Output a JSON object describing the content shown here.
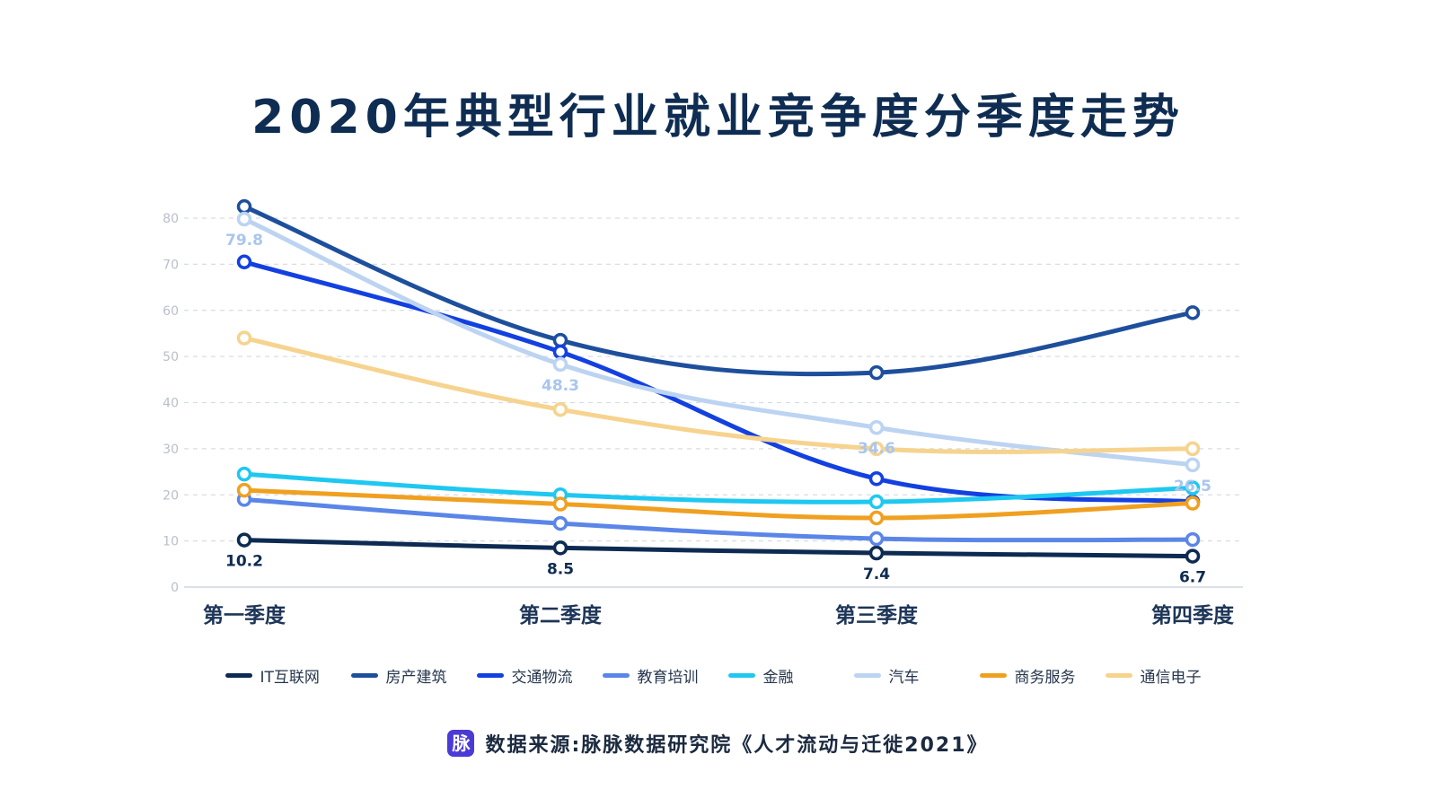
{
  "title": "2020年典型行业就业竞争度分季度走势",
  "source": {
    "logo_text": "脉",
    "text": "数据来源:脉脉数据研究院《人才流动与迁徙2021》"
  },
  "chart_data": {
    "type": "line",
    "title": "2020年典型行业就业竞争度分季度走势",
    "categories": [
      "第一季度",
      "第二季度",
      "第三季度",
      "第四季度"
    ],
    "ylim": [
      0,
      80
    ],
    "yticks": [
      0,
      10,
      20,
      30,
      40,
      50,
      60,
      70,
      80
    ],
    "grid": true,
    "legend_position": "bottom",
    "series": [
      {
        "name": "IT互联网",
        "color": "#0d2b52",
        "values": [
          10.2,
          8.5,
          7.4,
          6.7
        ],
        "labels": [
          "10.2",
          "8.5",
          "7.4",
          "6.7"
        ],
        "label_color": "#0d2b52",
        "label_position": "below"
      },
      {
        "name": "房产建筑",
        "color": "#1e4f9c",
        "values": [
          82.5,
          53.5,
          46.5,
          59.5
        ]
      },
      {
        "name": "交通物流",
        "color": "#1340e0",
        "values": [
          70.5,
          51.0,
          23.5,
          18.5
        ]
      },
      {
        "name": "教育培训",
        "color": "#5b86e8",
        "values": [
          19.0,
          13.8,
          10.5,
          10.3
        ]
      },
      {
        "name": "金融",
        "color": "#1ec8f0",
        "values": [
          24.5,
          20.0,
          18.5,
          21.5
        ]
      },
      {
        "name": "汽车",
        "color": "#bcd3f2",
        "values": [
          79.8,
          48.3,
          34.6,
          26.5
        ],
        "labels": [
          "79.8",
          "48.3",
          "34.6",
          "26.5"
        ],
        "label_color": "#a9c6ee",
        "label_position": "below"
      },
      {
        "name": "商务服务",
        "color": "#f0a020",
        "values": [
          21.0,
          18.0,
          15.0,
          18.2
        ]
      },
      {
        "name": "通信电子",
        "color": "#f6d38e",
        "values": [
          54.0,
          38.5,
          30.0,
          30.0
        ]
      }
    ]
  }
}
